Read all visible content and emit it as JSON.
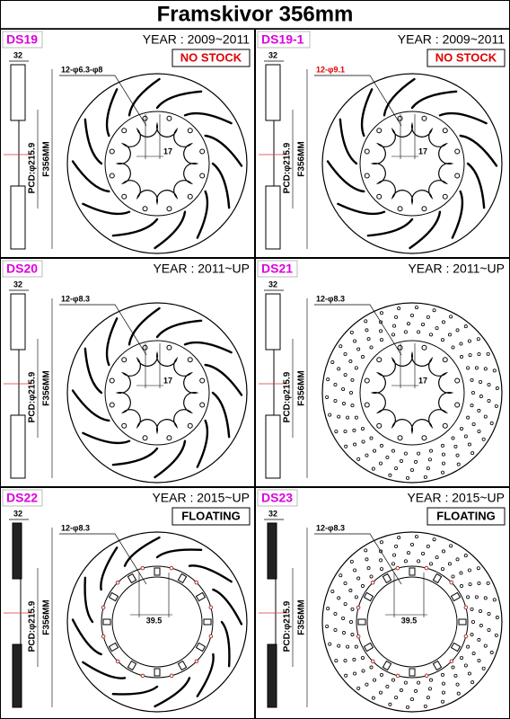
{
  "header": {
    "title": "Framskivor 356mm"
  },
  "panels": [
    {
      "code": "DS19",
      "year": "YEAR : 2009~2011",
      "status": "NO STOCK",
      "thickness": "32",
      "holes": "12-φ6.3-φ8",
      "offset": "17",
      "pcd": "PCD:φ215.9",
      "diameter": "F356MM"
    },
    {
      "code": "DS19-1",
      "year": "YEAR : 2009~2011",
      "status": "NO STOCK",
      "thickness": "32",
      "holes": "12-φ9.1",
      "offset": "17",
      "pcd": "PCD:φ215.9",
      "diameter": "F356MM"
    },
    {
      "code": "DS20",
      "year": "YEAR : 2011~UP",
      "thickness": "32",
      "holes": "12-φ8.3",
      "offset": "17",
      "pcd": "PCD:φ215.9",
      "diameter": "F356MM"
    },
    {
      "code": "DS21",
      "year": "YEAR : 2011~UP",
      "thickness": "32",
      "holes": "12-φ8.3",
      "offset": "17",
      "pcd": "PCD:φ215.9",
      "diameter": "F356MM"
    },
    {
      "code": "DS22",
      "year": "YEAR : 2015~UP",
      "status": "FLOATING",
      "thickness": "32",
      "holes": "12-φ8.3",
      "offset": "39.5",
      "pcd": "PCD:φ215.9",
      "diameter": "F356MM"
    },
    {
      "code": "DS23",
      "year": "YEAR : 2015~UP",
      "status": "FLOATING",
      "thickness": "32",
      "holes": "12-φ8.3",
      "offset": "39.5",
      "pcd": "PCD:φ215.9",
      "diameter": "F356MM"
    }
  ]
}
